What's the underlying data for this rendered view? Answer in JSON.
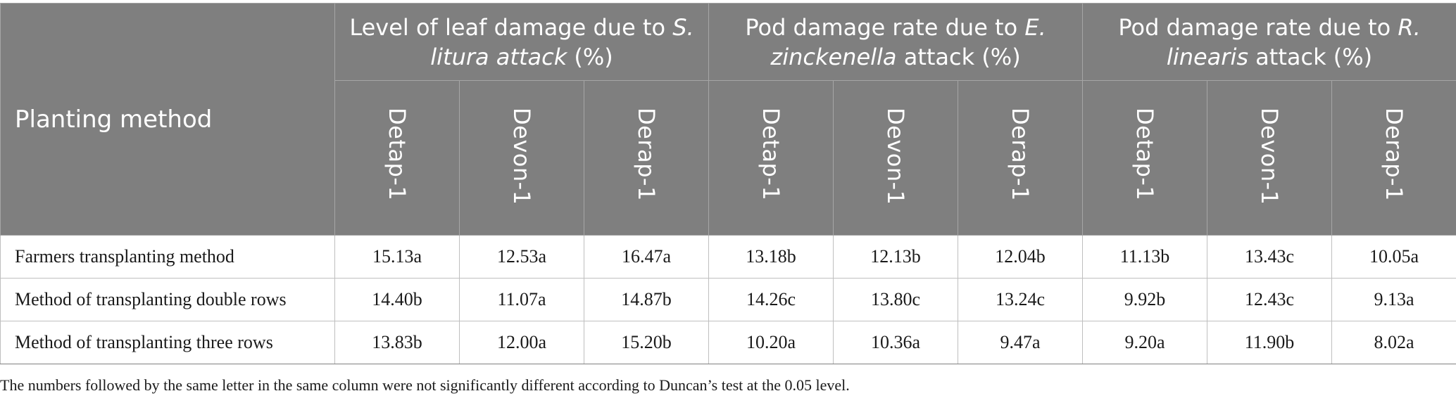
{
  "table": {
    "method_header": "Planting method",
    "groups": [
      {
        "parts": [
          {
            "text": "Level of leaf damage due to ",
            "italic": false
          },
          {
            "text": "S. litura attack",
            "italic": true
          },
          {
            "text": " (%)",
            "italic": false
          }
        ]
      },
      {
        "parts": [
          {
            "text": "Pod damage rate due to ",
            "italic": false
          },
          {
            "text": "E. zinckenella",
            "italic": true
          },
          {
            "text": " attack (%)",
            "italic": false
          }
        ]
      },
      {
        "parts": [
          {
            "text": "Pod damage rate due to ",
            "italic": false
          },
          {
            "text": "R. linearis",
            "italic": true
          },
          {
            "text": " attack (%)",
            "italic": false
          }
        ]
      }
    ],
    "varieties": [
      "Detap-1",
      "Devon-1",
      "Derap-1",
      "Detap-1",
      "Devon-1",
      "Derap-1",
      "Detap-1",
      "Devon-1",
      "Derap-1"
    ],
    "rows": [
      {
        "method": "Farmers transplanting method",
        "values": [
          "15.13a",
          "12.53a",
          "16.47a",
          "13.18b",
          "12.13b",
          "12.04b",
          "11.13b",
          "13.43c",
          "10.05a"
        ]
      },
      {
        "method": "Method of transplanting double rows",
        "values": [
          "14.40b",
          "11.07a",
          "14.87b",
          "14.26c",
          "13.80c",
          "13.24c",
          "9.92b",
          "12.43c",
          "9.13a"
        ]
      },
      {
        "method": "Method of transplanting three rows",
        "values": [
          "13.83b",
          "12.00a",
          "15.20b",
          "10.20a",
          "10.36a",
          "9.47a",
          "9.20a",
          "11.90b",
          "8.02a"
        ]
      }
    ]
  },
  "footnote": "The numbers followed by the same letter in the same column were not significantly different according to Duncan’s test at the 0.05 level.",
  "colors": {
    "header_bg": "#7f7f7f",
    "header_text": "#ffffff",
    "body_text": "#1a1a1a",
    "grid_line": "#bfbfbf"
  }
}
